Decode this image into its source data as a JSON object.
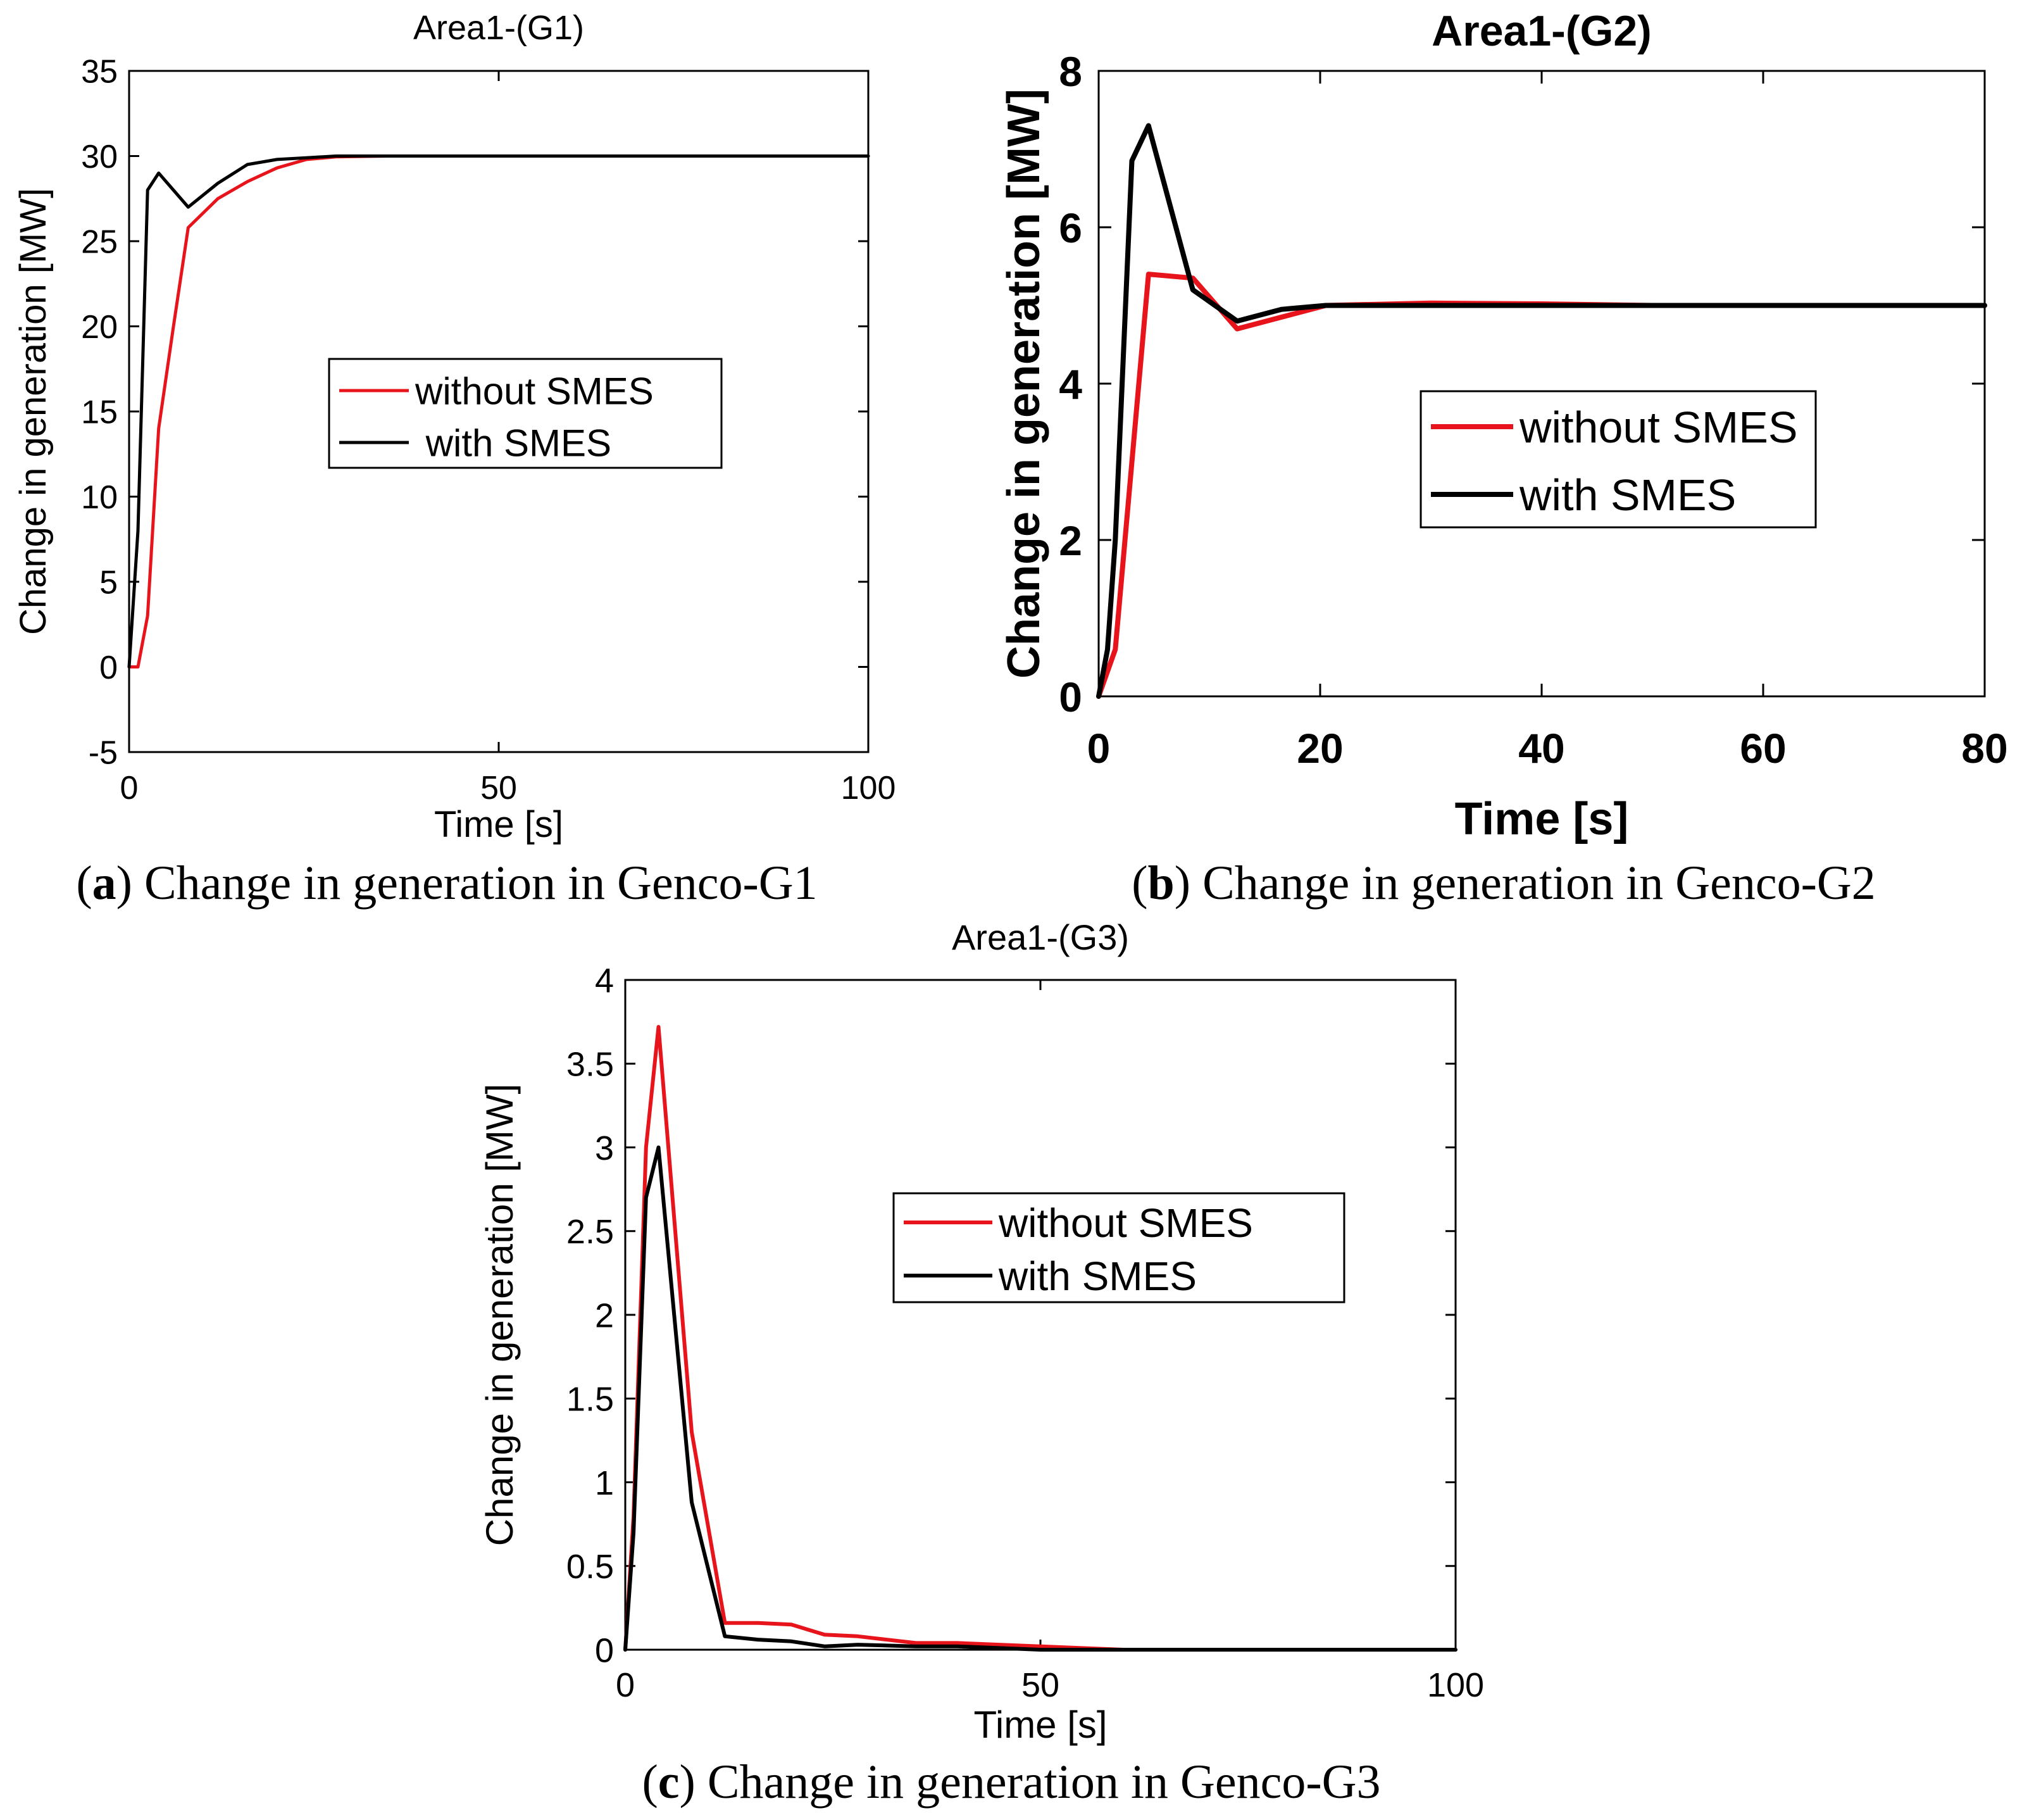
{
  "chart_data": [
    {
      "type": "line",
      "title": "Area1-(G1)",
      "xlabel": "Time [s]",
      "ylabel": "Change in generation [MW]",
      "xlim": [
        0,
        100
      ],
      "ylim": [
        -5,
        35
      ],
      "xticks": [
        0,
        50,
        100
      ],
      "xtick_labels": [
        "0",
        "50",
        "100"
      ],
      "yticks": [
        -5,
        0,
        5,
        10,
        15,
        20,
        25,
        30,
        35
      ],
      "ytick_labels": [
        "-5",
        "0",
        "5",
        "10",
        "15",
        "20",
        "25",
        "30",
        "35"
      ],
      "legend": {
        "position": "center-right",
        "entries": [
          "without SMES",
          " with SMES"
        ]
      },
      "caption": {
        "letter": "a",
        "text": " Change in generation in Genco-G1"
      },
      "series": [
        {
          "name": "without SMES",
          "color": "#e8141b",
          "x": [
            0,
            1.2,
            2.5,
            4,
            6,
            8,
            12,
            16,
            20,
            24,
            28,
            35,
            50,
            75,
            100
          ],
          "y": [
            0,
            0,
            3,
            14,
            20,
            25.8,
            27.5,
            28.5,
            29.3,
            29.8,
            29.95,
            30,
            30,
            30,
            30
          ]
        },
        {
          "name": "with SMES",
          "color": "#000000",
          "x": [
            0,
            1.2,
            2.5,
            4,
            8,
            12,
            16,
            20,
            24,
            28,
            35,
            50,
            75,
            100
          ],
          "y": [
            0,
            8,
            28,
            29,
            27,
            28.4,
            29.5,
            29.8,
            29.9,
            30,
            30,
            30,
            30,
            30
          ]
        }
      ]
    },
    {
      "type": "line",
      "title": "Area1-(G2)",
      "xlabel": "Time [s]",
      "ylabel": "Change in generation [MW]",
      "xlim": [
        0,
        80
      ],
      "ylim": [
        0,
        8
      ],
      "xticks": [
        0,
        20,
        40,
        60,
        80
      ],
      "xtick_labels": [
        "0",
        "20",
        "40",
        "60",
        "80"
      ],
      "yticks": [
        0,
        2,
        4,
        6,
        8
      ],
      "ytick_labels": [
        "0",
        "2",
        "4",
        "6",
        "8"
      ],
      "legend": {
        "position": "center-right",
        "entries": [
          "without SMES",
          "with SMES"
        ]
      },
      "caption": {
        "letter": "b",
        "text": " Change in generation in Genco-G2"
      },
      "series": [
        {
          "name": "without SMES",
          "color": "#e8141b",
          "x": [
            0,
            1.5,
            4.5,
            8.5,
            12.5,
            16.5,
            20.5,
            30,
            40,
            50,
            60,
            80
          ],
          "y": [
            0,
            0.6,
            5.4,
            5.35,
            4.7,
            4.85,
            5.0,
            5.03,
            5.02,
            5.0,
            5.0,
            5.0
          ]
        },
        {
          "name": "with SMES",
          "color": "#000000",
          "x": [
            0,
            0.8,
            1.5,
            3,
            4.5,
            8.5,
            12.5,
            16.5,
            20.5,
            30,
            40,
            60,
            80
          ],
          "y": [
            0,
            0.6,
            2,
            6.85,
            7.3,
            5.2,
            4.8,
            4.95,
            5.0,
            5.0,
            5.0,
            5.0,
            5.0
          ]
        }
      ]
    },
    {
      "type": "line",
      "title": "Area1-(G3)",
      "xlabel": "Time [s]",
      "ylabel": "Change in generation [MW]",
      "xlim": [
        0,
        100
      ],
      "ylim": [
        0,
        4
      ],
      "xticks": [
        0,
        50,
        100
      ],
      "xtick_labels": [
        "0",
        "50",
        "100"
      ],
      "yticks": [
        0,
        0.5,
        1,
        1.5,
        2,
        2.5,
        3,
        3.5,
        4
      ],
      "ytick_labels": [
        "0",
        "0.5",
        "1",
        "1.5",
        "2",
        "2.5",
        "3",
        "3.5",
        "4"
      ],
      "legend": {
        "position": "center-right",
        "entries": [
          "without SMES",
          "with SMES"
        ]
      },
      "caption": {
        "letter": "c",
        "text": " Change in generation in Genco-G3"
      },
      "series": [
        {
          "name": "without SMES",
          "color": "#e8141b",
          "x": [
            0,
            1,
            2.5,
            4,
            8,
            12,
            16,
            20,
            24,
            28,
            35,
            40,
            50,
            60,
            100
          ],
          "y": [
            0,
            0.8,
            3.0,
            3.72,
            1.3,
            0.16,
            0.16,
            0.15,
            0.09,
            0.08,
            0.04,
            0.04,
            0.02,
            0.0,
            0.0
          ]
        },
        {
          "name": "with SMES",
          "color": "#000000",
          "x": [
            0,
            1,
            2.5,
            4,
            8,
            12,
            16,
            20,
            24,
            28,
            35,
            40,
            50,
            60,
            100
          ],
          "y": [
            0,
            0.7,
            2.7,
            3.0,
            0.88,
            0.08,
            0.06,
            0.05,
            0.02,
            0.03,
            0.02,
            0.02,
            0.0,
            0.0,
            0.0
          ]
        }
      ]
    }
  ]
}
